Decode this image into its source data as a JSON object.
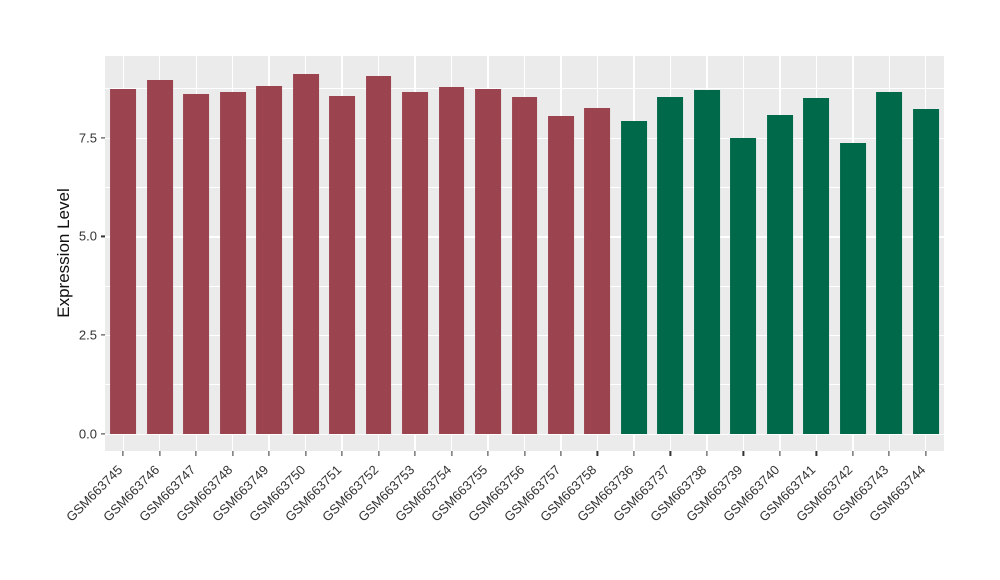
{
  "chart_data": {
    "type": "bar",
    "title": "",
    "xlabel": "",
    "ylabel": "Expression Level",
    "legend": "none",
    "panel_bg": "#EBEBEB",
    "grid_color": "#FFFFFF",
    "y_axis": {
      "range": [
        -0.44,
        9.57
      ],
      "major_ticks": [
        0.0,
        2.5,
        5.0,
        7.5
      ],
      "tick_labels": [
        "0.0",
        "2.5",
        "5.0",
        "7.5"
      ],
      "minor_gridlines": [
        1.25,
        3.75,
        6.25,
        8.75
      ]
    },
    "groups": [
      {
        "color": "#9B4450",
        "bars": [
          {
            "label": "GSM663745",
            "value": 8.74
          },
          {
            "label": "GSM663746",
            "value": 8.95
          },
          {
            "label": "GSM663747",
            "value": 8.6
          },
          {
            "label": "GSM663748",
            "value": 8.67
          },
          {
            "label": "GSM663749",
            "value": 8.8
          },
          {
            "label": "GSM663750",
            "value": 9.12
          },
          {
            "label": "GSM663751",
            "value": 8.55
          },
          {
            "label": "GSM663752",
            "value": 9.06
          },
          {
            "label": "GSM663753",
            "value": 8.65
          },
          {
            "label": "GSM663754",
            "value": 8.79
          },
          {
            "label": "GSM663755",
            "value": 8.74
          },
          {
            "label": "GSM663756",
            "value": 8.53
          },
          {
            "label": "GSM663757",
            "value": 8.06
          },
          {
            "label": "GSM663758",
            "value": 8.25
          }
        ]
      },
      {
        "color": "#006949",
        "bars": [
          {
            "label": "GSM663736",
            "value": 7.93
          },
          {
            "label": "GSM663737",
            "value": 8.52
          },
          {
            "label": "GSM663738",
            "value": 8.72
          },
          {
            "label": "GSM663739",
            "value": 7.49
          },
          {
            "label": "GSM663740",
            "value": 8.08
          },
          {
            "label": "GSM663741",
            "value": 8.5
          },
          {
            "label": "GSM663742",
            "value": 7.37
          },
          {
            "label": "GSM663743",
            "value": 8.67
          },
          {
            "label": "GSM663744",
            "value": 8.22
          }
        ]
      }
    ],
    "bar_width_fraction": 0.71
  }
}
